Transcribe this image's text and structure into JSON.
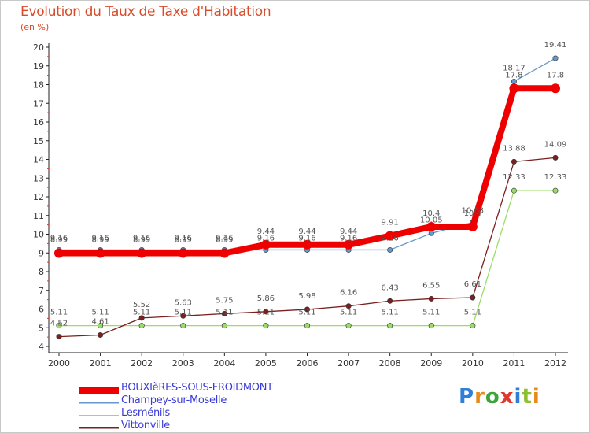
{
  "header": {
    "title": "Evolution du Taux de Taxe d'Habitation",
    "subtitle": "(en %)"
  },
  "logo": {
    "letters": [
      "P",
      "r",
      "o",
      "x",
      "i",
      "t",
      "i"
    ],
    "colors": [
      "#2f7fd8",
      "#e88a1a",
      "#3aa63a",
      "#e03a2e",
      "#2f7fd8",
      "#8dbf2e",
      "#e88a1a"
    ]
  },
  "chart_data": {
    "type": "line",
    "title": "Evolution du Taux de Taxe d'Habitation",
    "ylabel": "(en %)",
    "xlabel": "",
    "ylim": [
      4,
      20
    ],
    "yticks": [
      "4",
      "5",
      "6",
      "7",
      "8",
      "9",
      "10",
      "11",
      "12",
      "13",
      "14",
      "15",
      "16",
      "17",
      "18",
      "19",
      "20"
    ],
    "x": [
      "2000",
      "2001",
      "2002",
      "2003",
      "2004",
      "2005",
      "2006",
      "2007",
      "2008",
      "2009",
      "2010",
      "2011",
      "2012"
    ],
    "grid": false,
    "legend": "bottom-left",
    "series": [
      {
        "name": "BOUXIèRES-SOUS-FROIDMONT",
        "color": "#ee0000",
        "values": [
          8.99,
          8.99,
          8.99,
          8.99,
          8.99,
          9.44,
          9.44,
          9.44,
          9.91,
          10.4,
          10.4,
          17.8,
          17.8
        ],
        "labels": [
          "8.99",
          "8.99",
          "8.99",
          "8.99",
          "8.99",
          "9.44",
          "9.44",
          "9.44",
          "9.91",
          "10.4",
          "10.4",
          "17.8",
          "17.8"
        ]
      },
      {
        "name": "Champey-sur-Moselle",
        "color": "#6699cc",
        "values": [
          9.16,
          9.16,
          9.16,
          9.16,
          9.16,
          9.16,
          9.16,
          9.16,
          9.16,
          10.05,
          10.63,
          18.17,
          19.41
        ],
        "labels": [
          "9.16",
          "9.16",
          "9.16",
          "9.16",
          "9.16",
          "9.16",
          "9.16",
          "9.16",
          "9.16",
          "10.05",
          "10.63",
          "18.17",
          "19.41"
        ]
      },
      {
        "name": "Lesménils",
        "color": "#99dd66",
        "values": [
          5.11,
          5.11,
          5.11,
          5.11,
          5.11,
          5.11,
          5.11,
          5.11,
          5.11,
          5.11,
          5.11,
          12.33,
          12.33
        ],
        "labels": [
          "5.11",
          "5.11",
          "5.11",
          "5.11",
          "5.11",
          "5.11",
          "5.11",
          "5.11",
          "5.11",
          "5.11",
          "5.11",
          "12.33",
          "12.33"
        ]
      },
      {
        "name": "Vittonville",
        "color": "#7a2020",
        "values": [
          4.52,
          4.61,
          5.52,
          5.63,
          5.75,
          5.86,
          5.98,
          6.16,
          6.43,
          6.55,
          6.61,
          13.88,
          14.09
        ],
        "labels": [
          "4.52",
          "4.61",
          "5.52",
          "5.63",
          "5.75",
          "5.86",
          "5.98",
          "6.16",
          "6.43",
          "6.55",
          "6.61",
          "13.88",
          "14.09"
        ]
      }
    ]
  }
}
